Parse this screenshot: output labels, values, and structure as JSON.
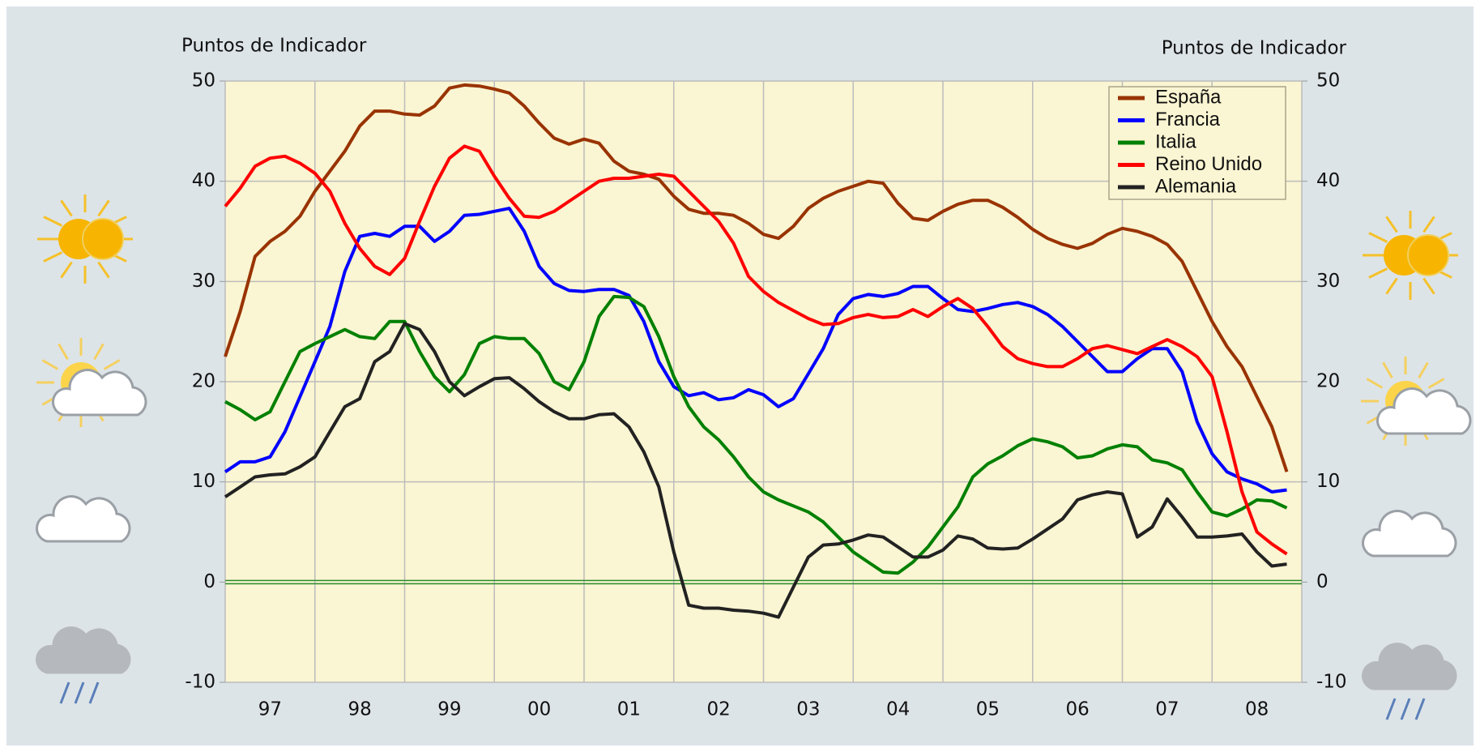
{
  "chart_data": {
    "type": "line",
    "y_label": "Puntos de Indicador",
    "y2_label": "Puntos de Indicador",
    "categories": [
      null,
      null,
      null,
      "97",
      null,
      null,
      null,
      null,
      null,
      "98",
      null,
      null,
      null,
      null,
      null,
      "99",
      null,
      null,
      null,
      null,
      null,
      "00",
      null,
      null,
      null,
      null,
      null,
      "01",
      null,
      null,
      null,
      null,
      null,
      "02",
      null,
      null,
      null,
      null,
      null,
      "03",
      null,
      null,
      null,
      null,
      null,
      "04",
      null,
      null,
      null,
      null,
      null,
      "05",
      null,
      null,
      null,
      null,
      null,
      "06",
      null,
      null,
      null,
      null,
      null,
      "07",
      null,
      null,
      null,
      null,
      null,
      "08",
      null,
      null,
      null
    ],
    "series": [
      {
        "name": "España",
        "color": "#993300",
        "values": [
          22.5,
          27,
          32.5,
          34,
          35,
          36.5,
          39,
          41,
          43,
          45.5,
          47,
          47,
          46.7,
          46.6,
          47.5,
          49.3,
          49.6,
          49.5,
          49.2,
          48.8,
          47.5,
          45.8,
          44.3,
          43.7,
          44.2,
          43.8,
          42,
          41,
          40.7,
          40.2,
          38.5,
          37.2,
          36.8,
          36.8,
          36.6,
          35.8,
          34.7,
          34.3,
          35.5,
          37.3,
          38.3,
          39,
          39.5,
          40,
          39.8,
          37.8,
          36.3,
          36.1,
          37,
          37.7,
          38.1,
          38.1,
          37.4,
          36.4,
          35.2,
          34.3,
          33.7,
          33.3,
          33.8,
          34.7,
          35.3,
          35,
          34.5,
          33.7,
          32,
          29,
          26,
          23.5,
          21.5,
          18.5,
          15.5,
          11,
          null
        ]
      },
      {
        "name": "Francia",
        "color": "#0000ff",
        "values": [
          11,
          12,
          12,
          12.5,
          15,
          18.5,
          22,
          25.5,
          31,
          34.5,
          34.8,
          34.5,
          35.5,
          35.5,
          34,
          35,
          36.6,
          36.7,
          37,
          37.3,
          35,
          31.5,
          29.8,
          29.1,
          29,
          29.2,
          29.2,
          28.6,
          26,
          22,
          19.5,
          18.6,
          18.9,
          18.2,
          18.4,
          19.2,
          18.7,
          17.5,
          18.3,
          20.8,
          23.3,
          26.7,
          28.3,
          28.7,
          28.5,
          28.8,
          29.5,
          29.5,
          28.3,
          27.2,
          27,
          27.3,
          27.7,
          27.9,
          27.5,
          26.7,
          25.5,
          24,
          22.5,
          21,
          21,
          22.3,
          23.3,
          23.3,
          21,
          16,
          12.8,
          11,
          10.3,
          9.8,
          9,
          9.2,
          null
        ]
      },
      {
        "name": "Italia",
        "color": "#008000",
        "values": [
          18,
          17.2,
          16.2,
          17,
          20,
          23,
          23.8,
          24.5,
          25.2,
          24.5,
          24.3,
          26,
          26,
          23,
          20.5,
          19,
          20.7,
          23.8,
          24.5,
          24.3,
          24.3,
          22.8,
          20,
          19.2,
          22,
          26.5,
          28.5,
          28.4,
          27.5,
          24.5,
          20.5,
          17.5,
          15.5,
          14.2,
          12.5,
          10.5,
          9,
          8.2,
          7.6,
          7,
          6,
          4.5,
          3,
          2,
          1,
          0.9,
          2,
          3.5,
          5.5,
          7.5,
          10.5,
          11.8,
          12.6,
          13.6,
          14.3,
          14,
          13.5,
          12.4,
          12.6,
          13.3,
          13.7,
          13.5,
          12.2,
          11.9,
          11.2,
          9,
          7,
          6.6,
          7.3,
          8.2,
          8.1,
          7.4,
          null
        ]
      },
      {
        "name": "Reino Unido",
        "color": "#ff0000",
        "values": [
          37.5,
          39.3,
          41.5,
          42.3,
          42.5,
          41.8,
          40.8,
          39,
          35.8,
          33.3,
          31.5,
          30.7,
          32.3,
          36,
          39.5,
          42.3,
          43.5,
          43,
          40.5,
          38.3,
          36.5,
          36.4,
          37,
          38,
          39,
          40,
          40.3,
          40.3,
          40.5,
          40.7,
          40.5,
          39,
          37.5,
          36,
          33.8,
          30.5,
          29,
          27.9,
          27.1,
          26.3,
          25.7,
          25.8,
          26.4,
          26.7,
          26.4,
          26.5,
          27.2,
          26.5,
          27.5,
          28.3,
          27.3,
          25.5,
          23.5,
          22.3,
          21.8,
          21.5,
          21.5,
          22.3,
          23.3,
          23.6,
          23.2,
          22.8,
          23.5,
          24.2,
          23.5,
          22.5,
          20.5,
          15,
          9,
          5,
          3.8,
          2.8,
          null
        ]
      },
      {
        "name": "Alemania",
        "color": "#222222",
        "values": [
          8.5,
          9.5,
          10.5,
          10.7,
          10.8,
          11.5,
          12.5,
          15,
          17.5,
          18.3,
          22,
          23,
          25.8,
          25.2,
          23,
          20,
          18.6,
          19.5,
          20.3,
          20.4,
          19.3,
          18,
          17,
          16.3,
          16.3,
          16.7,
          16.8,
          15.5,
          13,
          9.5,
          3,
          -2.3,
          -2.6,
          -2.6,
          -2.8,
          -2.9,
          -3.1,
          -3.5,
          -0.5,
          2.5,
          3.7,
          3.8,
          4.2,
          4.7,
          4.5,
          3.5,
          2.5,
          2.5,
          3.2,
          4.6,
          4.3,
          3.4,
          3.3,
          3.4,
          4.3,
          5.3,
          6.3,
          8.2,
          8.7,
          9,
          8.8,
          4.5,
          5.5,
          8.3,
          6.5,
          4.5,
          4.5,
          4.6,
          4.8,
          3,
          1.6,
          1.8,
          null
        ]
      }
    ],
    "ylim": [
      -10,
      50
    ],
    "yticks": [
      -10,
      0,
      10,
      20,
      30,
      40,
      50
    ],
    "y2lim": [
      -10,
      50
    ],
    "y2ticks": [
      -10,
      0,
      10,
      20,
      30,
      40,
      50
    ],
    "grid": true,
    "legend": "top-right"
  }
}
